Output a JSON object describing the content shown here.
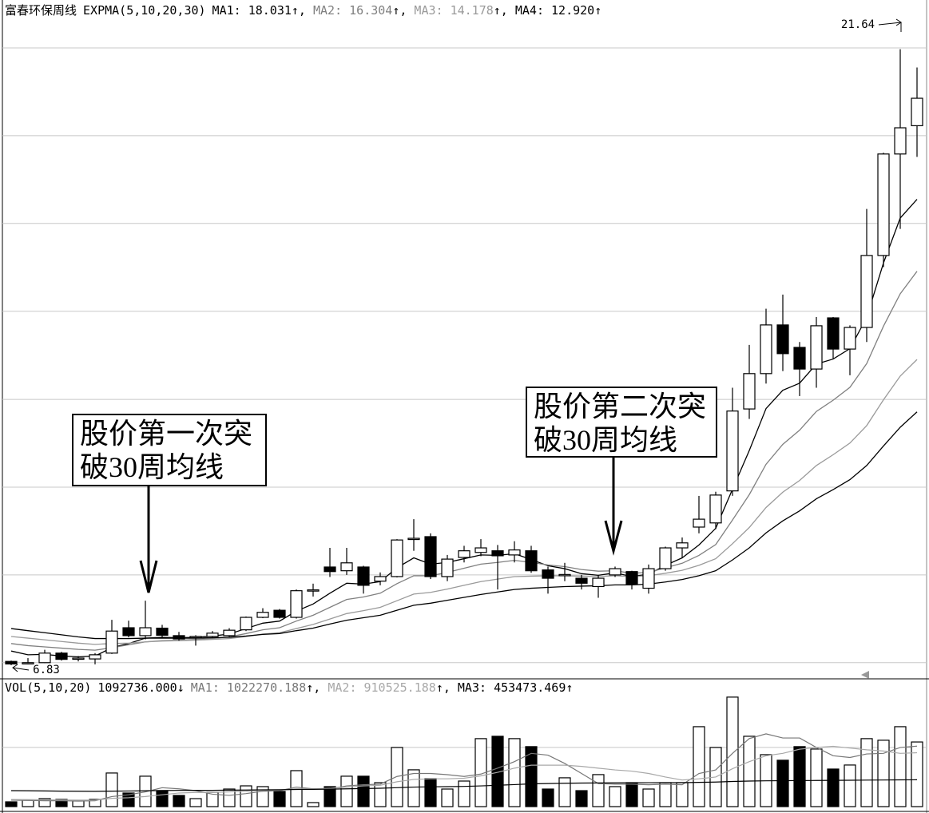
{
  "chart_data": [
    {
      "type": "candlestick",
      "title": "富春环保周线",
      "indicator": "EXPMA(5,10,20,30)",
      "ylim": [
        6.54,
        22.4
      ],
      "grid": true,
      "ygrid": [
        6.89,
        9.0,
        11.11,
        13.22,
        15.34,
        17.45,
        19.56,
        21.67
      ],
      "up_color": "#ffffff",
      "down_color": "#000000",
      "edge_color": "#000000",
      "open": [
        6.92,
        6.88,
        6.89,
        7.12,
        6.98,
        6.98,
        7.12,
        7.73,
        7.54,
        7.72,
        7.54,
        7.5,
        7.52,
        7.54,
        7.68,
        7.98,
        8.15,
        7.98,
        8.62,
        9.19,
        9.1,
        9.19,
        8.85,
        8.96,
        9.86,
        9.92,
        8.96,
        9.42,
        9.54,
        9.58,
        9.48,
        9.58,
        9.12,
        8.99,
        8.92,
        8.72,
        9.0,
        9.08,
        8.68,
        9.15,
        9.65,
        10.15,
        10.25,
        11.02,
        12.99,
        13.84,
        15.01,
        14.47,
        13.95,
        15.18,
        14.43,
        14.95,
        16.68,
        19.12,
        19.8
      ],
      "high": [
        6.94,
        7.0,
        7.2,
        7.15,
        7.05,
        7.12,
        7.92,
        7.9,
        8.38,
        7.8,
        7.63,
        7.55,
        7.65,
        7.72,
        8.0,
        8.2,
        8.18,
        8.65,
        8.79,
        9.65,
        9.65,
        9.22,
        9.06,
        9.86,
        10.34,
        10.0,
        9.48,
        9.7,
        9.86,
        9.72,
        9.81,
        9.7,
        9.2,
        9.29,
        9.0,
        9.0,
        9.2,
        9.1,
        9.25,
        9.68,
        9.9,
        10.9,
        11.0,
        13.5,
        14.53,
        15.4,
        15.74,
        14.6,
        15.2,
        15.2,
        15.0,
        17.8,
        19.15,
        21.64,
        21.2
      ],
      "low": [
        6.83,
        6.85,
        6.88,
        6.94,
        6.92,
        6.85,
        7.1,
        7.5,
        7.45,
        7.48,
        7.42,
        7.3,
        7.48,
        7.5,
        7.65,
        7.96,
        7.95,
        7.95,
        8.48,
        8.95,
        9.0,
        8.55,
        8.75,
        8.94,
        9.58,
        8.9,
        8.85,
        9.3,
        9.45,
        8.65,
        9.3,
        9.05,
        8.55,
        8.85,
        8.65,
        8.45,
        8.95,
        8.65,
        8.55,
        9.1,
        9.4,
        10.0,
        10.1,
        10.9,
        12.75,
        13.6,
        13.9,
        13.3,
        13.5,
        14.2,
        13.8,
        14.6,
        16.4,
        17.32,
        19.05
      ],
      "close": [
        6.86,
        6.89,
        7.12,
        6.97,
        7.0,
        7.08,
        7.65,
        7.54,
        7.73,
        7.55,
        7.46,
        7.52,
        7.6,
        7.67,
        7.98,
        8.1,
        7.98,
        8.62,
        8.64,
        9.08,
        9.29,
        8.75,
        8.96,
        9.84,
        9.88,
        8.96,
        9.38,
        9.58,
        9.65,
        9.46,
        9.6,
        9.1,
        8.92,
        9.01,
        8.8,
        8.92,
        9.15,
        8.78,
        9.15,
        9.65,
        9.77,
        10.34,
        10.92,
        12.94,
        13.84,
        15.01,
        14.32,
        13.95,
        14.99,
        14.43,
        14.95,
        16.68,
        19.12,
        19.75,
        20.46
      ],
      "series": [
        {
          "name": "MA1",
          "color": "#000000",
          "current": 18.031,
          "trend": "↑",
          "values": [
            7.17,
            7.08,
            7.09,
            7.05,
            7.03,
            7.05,
            7.25,
            7.35,
            7.48,
            7.5,
            7.49,
            7.5,
            7.53,
            7.58,
            7.71,
            7.84,
            7.89,
            8.13,
            8.3,
            8.56,
            8.8,
            8.78,
            8.84,
            9.17,
            9.41,
            9.26,
            9.3,
            9.39,
            9.48,
            9.47,
            9.51,
            9.37,
            9.22,
            9.15,
            9.03,
            8.99,
            9.05,
            8.96,
            9.02,
            9.23,
            9.41,
            9.72,
            10.12,
            11.06,
            11.99,
            13.0,
            13.44,
            13.61,
            14.07,
            14.19,
            14.44,
            15.19,
            16.5,
            17.58,
            18.03
          ]
        },
        {
          "name": "MA2",
          "color": "#808080",
          "current": 16.304,
          "trend": "↑",
          "values": [
            7.35,
            7.3,
            7.27,
            7.24,
            7.21,
            7.19,
            7.25,
            7.32,
            7.39,
            7.42,
            7.43,
            7.45,
            7.47,
            7.51,
            7.59,
            7.68,
            7.73,
            7.89,
            8.03,
            8.22,
            8.41,
            8.47,
            8.56,
            8.79,
            8.98,
            8.98,
            9.06,
            9.16,
            9.26,
            9.3,
            9.35,
            9.3,
            9.24,
            9.2,
            9.13,
            9.09,
            9.1,
            9.04,
            9.06,
            9.17,
            9.28,
            9.47,
            9.73,
            10.32,
            10.93,
            11.66,
            12.14,
            12.48,
            12.93,
            13.2,
            13.51,
            14.08,
            14.98,
            15.76,
            16.3
          ]
        },
        {
          "name": "MA3",
          "color": "#9a9a9a",
          "current": 14.178,
          "trend": "↑",
          "values": [
            7.52,
            7.48,
            7.44,
            7.4,
            7.36,
            7.33,
            7.35,
            7.36,
            7.39,
            7.41,
            7.42,
            7.43,
            7.45,
            7.47,
            7.52,
            7.58,
            7.61,
            7.71,
            7.81,
            7.94,
            8.07,
            8.14,
            8.22,
            8.38,
            8.54,
            8.58,
            8.66,
            8.75,
            8.84,
            8.9,
            8.96,
            8.97,
            8.98,
            8.98,
            8.97,
            8.96,
            8.98,
            8.96,
            8.98,
            9.04,
            9.11,
            9.23,
            9.39,
            9.75,
            10.14,
            10.62,
            10.99,
            11.27,
            11.63,
            11.89,
            12.17,
            12.59,
            13.21,
            13.78,
            14.18
          ]
        },
        {
          "name": "MA4",
          "color": "#000000",
          "current": {
            "value": 12.92,
            "label": "12.920"
          },
          "trend": "↑",
          "values": [
            7.71,
            7.66,
            7.61,
            7.56,
            7.51,
            7.47,
            7.47,
            7.47,
            7.48,
            7.48,
            7.48,
            7.48,
            7.49,
            7.5,
            7.53,
            7.57,
            7.59,
            7.66,
            7.72,
            7.82,
            7.91,
            7.97,
            8.03,
            8.15,
            8.27,
            8.32,
            8.39,
            8.46,
            8.53,
            8.59,
            8.65,
            8.68,
            8.7,
            8.72,
            8.73,
            8.74,
            8.76,
            8.76,
            8.78,
            8.83,
            8.89,
            8.98,
            9.1,
            9.36,
            9.65,
            10.01,
            10.3,
            10.54,
            10.83,
            11.05,
            11.29,
            11.63,
            12.1,
            12.55,
            12.92
          ]
        }
      ],
      "annotations": [
        {
          "text": [
            "股价第一次突",
            "破30周均线"
          ]
        },
        {
          "text": [
            "股价第二次突",
            "破30周均线"
          ]
        }
      ]
    },
    {
      "type": "bar",
      "indicator": "VOL(5,10,20)",
      "current": {
        "value": 1092736,
        "label": "1092736.000"
      },
      "trend": "↓",
      "ylim": [
        0,
        1890000
      ],
      "grid": true,
      "ygrid": [
        1000000
      ],
      "up_color": "#ffffff",
      "down_color": "#000000",
      "edge_color": "#000000",
      "values": [
        81000,
        108000,
        135000,
        122000,
        95000,
        122000,
        568000,
        230000,
        514000,
        270000,
        189000,
        135000,
        243000,
        297000,
        351000,
        338000,
        257000,
        608000,
        68000,
        338000,
        514000,
        514000,
        405000,
        1000000,
        622000,
        473000,
        297000,
        432000,
        1149000,
        1189000,
        1149000,
        1014000,
        297000,
        487000,
        270000,
        541000,
        338000,
        405000,
        297000,
        405000,
        405000,
        1351000,
        1000000,
        1851000,
        1189000,
        878000,
        784000,
        1014000,
        973000,
        635000,
        703000,
        1149000,
        1122000,
        1351000,
        1092736
      ],
      "series": [
        {
          "name": "MA1",
          "color": "#777777",
          "current": 1022270.188,
          "trend": "↑",
          "values": [
            110000,
            105000,
            100000,
            100000,
            95000,
            100000,
            170000,
            200000,
            250000,
            320000,
            300000,
            270000,
            210000,
            190000,
            220000,
            260000,
            270000,
            330000,
            300000,
            300000,
            350000,
            370000,
            380000,
            510000,
            560000,
            560000,
            540000,
            510000,
            550000,
            650000,
            760000,
            900000,
            870000,
            730000,
            560000,
            390000,
            380000,
            380000,
            370000,
            380000,
            370000,
            560000,
            620000,
            900000,
            1150000,
            1230000,
            1160000,
            1160000,
            1000000,
            860000,
            830000,
            890000,
            900000,
            1000000,
            1022270
          ]
        },
        {
          "name": "MA2",
          "color": "#a8a8a8",
          "current": 910525.188,
          "trend": "↑",
          "values": [
            120000,
            118000,
            115000,
            112000,
            110000,
            110000,
            140000,
            150000,
            170000,
            200000,
            230000,
            240000,
            240000,
            250000,
            260000,
            280000,
            280000,
            300000,
            300000,
            310000,
            330000,
            350000,
            360000,
            420000,
            460000,
            470000,
            470000,
            480000,
            520000,
            580000,
            650000,
            700000,
            700000,
            700000,
            680000,
            650000,
            620000,
            600000,
            560000,
            500000,
            450000,
            470000,
            500000,
            640000,
            760000,
            860000,
            900000,
            970000,
            1000000,
            1020000,
            990000,
            960000,
            940000,
            900000,
            910525
          ]
        },
        {
          "name": "MA3",
          "color": "#000000",
          "current": 453473.469,
          "trend": "↑",
          "values": [
            270000,
            268000,
            265000,
            262000,
            260000,
            258000,
            262000,
            264000,
            268000,
            272000,
            274000,
            275000,
            276000,
            278000,
            280000,
            283000,
            285000,
            290000,
            292000,
            295000,
            300000,
            305000,
            310000,
            320000,
            330000,
            335000,
            338000,
            342000,
            350000,
            360000,
            372000,
            385000,
            390000,
            395000,
            398000,
            400000,
            402000,
            403000,
            404000,
            405000,
            405000,
            410000,
            415000,
            425000,
            432000,
            436000,
            438000,
            440000,
            442000,
            444000,
            446000,
            448000,
            450000,
            452000,
            453473
          ]
        }
      ]
    }
  ]
}
